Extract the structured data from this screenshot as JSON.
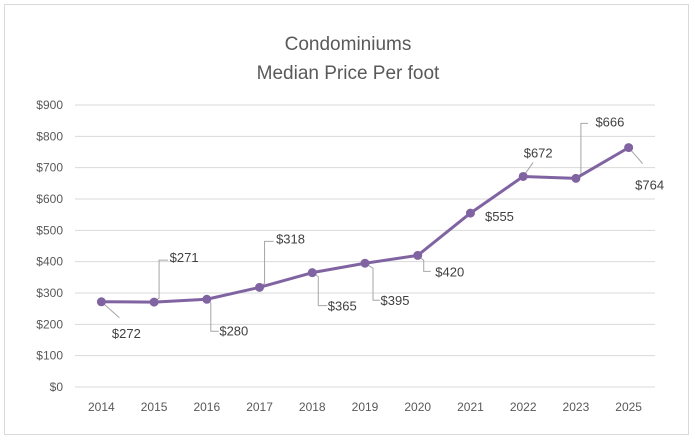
{
  "chart_data": {
    "type": "line",
    "title_lines": [
      "Condominiums",
      "Median Price Per foot"
    ],
    "xlabel": "",
    "ylabel": "",
    "categories": [
      "2014",
      "2015",
      "2016",
      "2017",
      "2018",
      "2019",
      "2020",
      "2021",
      "2022",
      "2023",
      "2025"
    ],
    "series": [
      {
        "values": [
          272,
          271,
          280,
          318,
          365,
          395,
          420,
          555,
          672,
          666,
          764
        ],
        "labels": [
          "$272",
          "$271",
          "$280",
          "$318",
          "$365",
          "$395",
          "$420",
          "$555",
          "$672",
          "$666",
          "$764"
        ],
        "color": "#8064a2"
      }
    ],
    "ylim": [
      0,
      900
    ],
    "yticks": [
      0,
      100,
      200,
      300,
      400,
      500,
      600,
      700,
      800,
      900
    ],
    "ytick_labels": [
      "$0",
      "$100",
      "$200",
      "$300",
      "$400",
      "$500",
      "$600",
      "$700",
      "$800",
      "$900"
    ],
    "grid": true,
    "legend": "none"
  }
}
